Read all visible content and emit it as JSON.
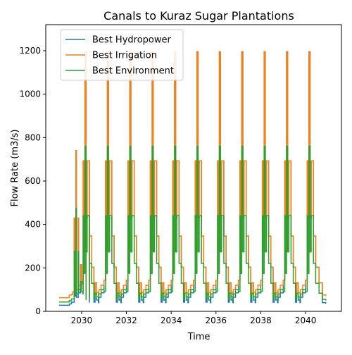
{
  "chart_data": {
    "type": "line",
    "title": "Canals to Kuraz Sugar Plantations",
    "xlabel": "Time",
    "ylabel": "Flow Rate (m3/s)",
    "xlim": [
      2028.4,
      2041.6
    ],
    "ylim": [
      0,
      1320
    ],
    "xticks": [
      2030,
      2032,
      2034,
      2036,
      2038,
      2040
    ],
    "yticks": [
      0,
      200,
      400,
      600,
      800,
      1000,
      1200
    ],
    "grid": false,
    "legend": {
      "placement": "top-left"
    },
    "series": [
      {
        "name": "Best Hydropower",
        "color": "#1f77b4",
        "first_season_peak": 740,
        "annual_peak": 1195,
        "base_flow": 30
      },
      {
        "name": "Best Irrigation",
        "color": "#ff7f0e",
        "first_season_peak": 740,
        "annual_peak": 1195,
        "base_flow": 65
      },
      {
        "name": "Best Environment",
        "color": "#2ca02c",
        "first_season_peak": 475,
        "annual_peak": 760,
        "base_flow": 45
      }
    ],
    "x_start": 2029.0,
    "x_end": 2040.9,
    "years": [
      2029,
      2030,
      2031,
      2032,
      2033,
      2034,
      2035,
      2036,
      2037,
      2038,
      2039,
      2040
    ]
  }
}
